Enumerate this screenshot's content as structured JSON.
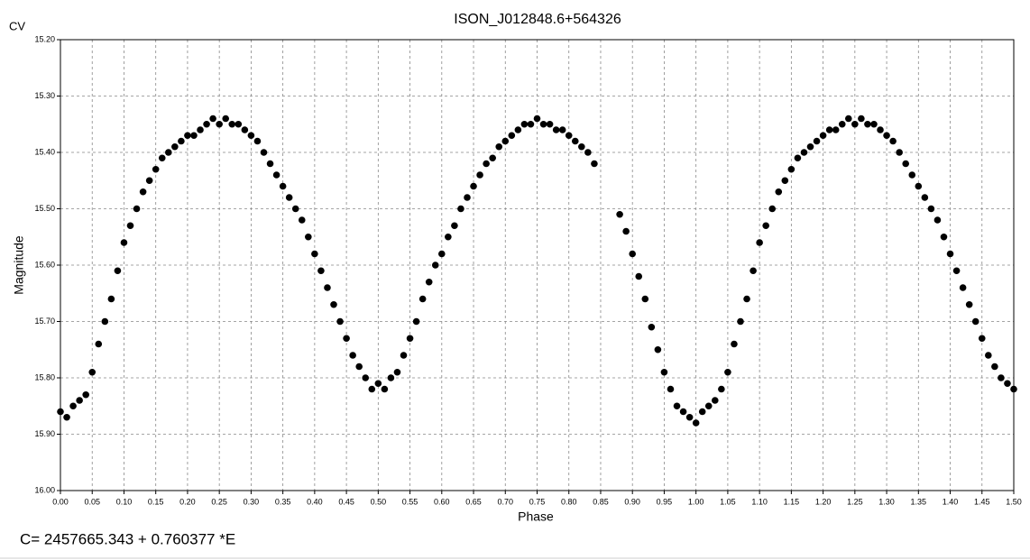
{
  "chart_data": {
    "type": "scatter",
    "title": "ISON_J012848.6+564326",
    "corner_label": "CV",
    "xlabel": "Phase",
    "ylabel": "Magnitude",
    "footnote": "C= 2457665.343 + 0.760377 *E",
    "color": "#000000",
    "grid": true,
    "y_inverted": true,
    "xlim": [
      0,
      1.5
    ],
    "ylim": [
      15.2,
      16.0
    ],
    "xticks": [
      {
        "value": 0,
        "label": "0.00"
      },
      {
        "value": 0.05,
        "label": "0.05"
      },
      {
        "value": 0.1,
        "label": "0.10"
      },
      {
        "value": 0.15,
        "label": "0.15"
      },
      {
        "value": 0.2,
        "label": "0.20"
      },
      {
        "value": 0.25,
        "label": "0.25"
      },
      {
        "value": 0.3,
        "label": "0.30"
      },
      {
        "value": 0.35,
        "label": "0.35"
      },
      {
        "value": 0.4,
        "label": "0.40"
      },
      {
        "value": 0.45,
        "label": "0.45"
      },
      {
        "value": 0.5,
        "label": "0.50"
      },
      {
        "value": 0.55,
        "label": "0.55"
      },
      {
        "value": 0.6,
        "label": "0.60"
      },
      {
        "value": 0.65,
        "label": "0.65"
      },
      {
        "value": 0.7,
        "label": "0.70"
      },
      {
        "value": 0.75,
        "label": "0.75"
      },
      {
        "value": 0.8,
        "label": "0.80"
      },
      {
        "value": 0.85,
        "label": "0.85"
      },
      {
        "value": 0.9,
        "label": "0.90"
      },
      {
        "value": 0.95,
        "label": "0.95"
      },
      {
        "value": 1,
        "label": "1.00"
      },
      {
        "value": 1.05,
        "label": "1.05"
      },
      {
        "value": 1.1,
        "label": "1.10"
      },
      {
        "value": 1.15,
        "label": "1.15"
      },
      {
        "value": 1.2,
        "label": "1.20"
      },
      {
        "value": 1.25,
        "label": "1.25"
      },
      {
        "value": 1.3,
        "label": "1.30"
      },
      {
        "value": 1.35,
        "label": "1.35"
      },
      {
        "value": 1.4,
        "label": "1.40"
      },
      {
        "value": 1.45,
        "label": "1.45"
      },
      {
        "value": 1.5,
        "label": "1.50"
      }
    ],
    "yticks": [
      {
        "value": 15.2,
        "label": "15.20"
      },
      {
        "value": 15.3,
        "label": "15.30"
      },
      {
        "value": 15.4,
        "label": "15.40"
      },
      {
        "value": 15.5,
        "label": "15.50"
      },
      {
        "value": 15.6,
        "label": "15.60"
      },
      {
        "value": 15.7,
        "label": "15.70"
      },
      {
        "value": 15.8,
        "label": "15.80"
      },
      {
        "value": 15.9,
        "label": "15.90"
      },
      {
        "value": 16.0,
        "label": "16.00"
      }
    ],
    "x": [
      0,
      0.01,
      0.02,
      0.03,
      0.04,
      0.05,
      0.06,
      0.07,
      0.08,
      0.09,
      0.1,
      0.11,
      0.12,
      0.13,
      0.14,
      0.15,
      0.16,
      0.17,
      0.18,
      0.19,
      0.2,
      0.21,
      0.22,
      0.23,
      0.24,
      0.25,
      0.26,
      0.27,
      0.28,
      0.29,
      0.3,
      0.31,
      0.32,
      0.33,
      0.34,
      0.35,
      0.36,
      0.37,
      0.38,
      0.39,
      0.4,
      0.41,
      0.42,
      0.43,
      0.44,
      0.45,
      0.46,
      0.47,
      0.48,
      0.49,
      0.5,
      0.51,
      0.52,
      0.53,
      0.54,
      0.55,
      0.56,
      0.57,
      0.58,
      0.59,
      0.6,
      0.61,
      0.62,
      0.63,
      0.64,
      0.65,
      0.66,
      0.67,
      0.68,
      0.69,
      0.7,
      0.71,
      0.72,
      0.73,
      0.74,
      0.75,
      0.76,
      0.77,
      0.78,
      0.79,
      0.8,
      0.81,
      0.82,
      0.83,
      0.84,
      0.88,
      0.89,
      0.9,
      0.91,
      0.92,
      0.93,
      0.94,
      0.95,
      0.96,
      0.97,
      0.98,
      0.99,
      1,
      1.01,
      1.02,
      1.03,
      1.04,
      1.05,
      1.06,
      1.07,
      1.08,
      1.09,
      1.1,
      1.11,
      1.12,
      1.13,
      1.14,
      1.15,
      1.16,
      1.17,
      1.18,
      1.19,
      1.2,
      1.21,
      1.22,
      1.23,
      1.24,
      1.25,
      1.26,
      1.27,
      1.28,
      1.29,
      1.3,
      1.31,
      1.32,
      1.33,
      1.34,
      1.35,
      1.36,
      1.37,
      1.38,
      1.39,
      1.4,
      1.41,
      1.42,
      1.43,
      1.44,
      1.45,
      1.46,
      1.47,
      1.48,
      1.49,
      1.5
    ],
    "values": [
      15.86,
      15.87,
      15.85,
      15.84,
      15.83,
      15.79,
      15.74,
      15.7,
      15.66,
      15.61,
      15.56,
      15.53,
      15.5,
      15.47,
      15.45,
      15.43,
      15.41,
      15.4,
      15.39,
      15.38,
      15.37,
      15.37,
      15.36,
      15.35,
      15.34,
      15.35,
      15.34,
      15.35,
      15.35,
      15.36,
      15.37,
      15.38,
      15.4,
      15.42,
      15.44,
      15.46,
      15.48,
      15.5,
      15.52,
      15.55,
      15.58,
      15.61,
      15.64,
      15.67,
      15.7,
      15.73,
      15.76,
      15.78,
      15.8,
      15.82,
      15.81,
      15.82,
      15.8,
      15.79,
      15.76,
      15.73,
      15.7,
      15.66,
      15.63,
      15.6,
      15.58,
      15.55,
      15.53,
      15.5,
      15.48,
      15.46,
      15.44,
      15.42,
      15.41,
      15.39,
      15.38,
      15.37,
      15.36,
      15.35,
      15.35,
      15.34,
      15.35,
      15.35,
      15.36,
      15.36,
      15.37,
      15.38,
      15.39,
      15.4,
      15.42,
      15.51,
      15.54,
      15.58,
      15.62,
      15.66,
      15.71,
      15.75,
      15.79,
      15.82,
      15.85,
      15.86,
      15.87,
      15.88,
      15.86,
      15.85,
      15.84,
      15.82,
      15.79,
      15.74,
      15.7,
      15.66,
      15.61,
      15.56,
      15.53,
      15.5,
      15.47,
      15.45,
      15.43,
      15.41,
      15.4,
      15.39,
      15.38,
      15.37,
      15.36,
      15.36,
      15.35,
      15.34,
      15.35,
      15.34,
      15.35,
      15.35,
      15.36,
      15.37,
      15.38,
      15.4,
      15.42,
      15.44,
      15.46,
      15.48,
      15.5,
      15.52,
      15.55,
      15.58,
      15.61,
      15.64,
      15.67,
      15.7,
      15.73,
      15.76,
      15.78,
      15.8,
      15.81,
      15.82
    ]
  }
}
